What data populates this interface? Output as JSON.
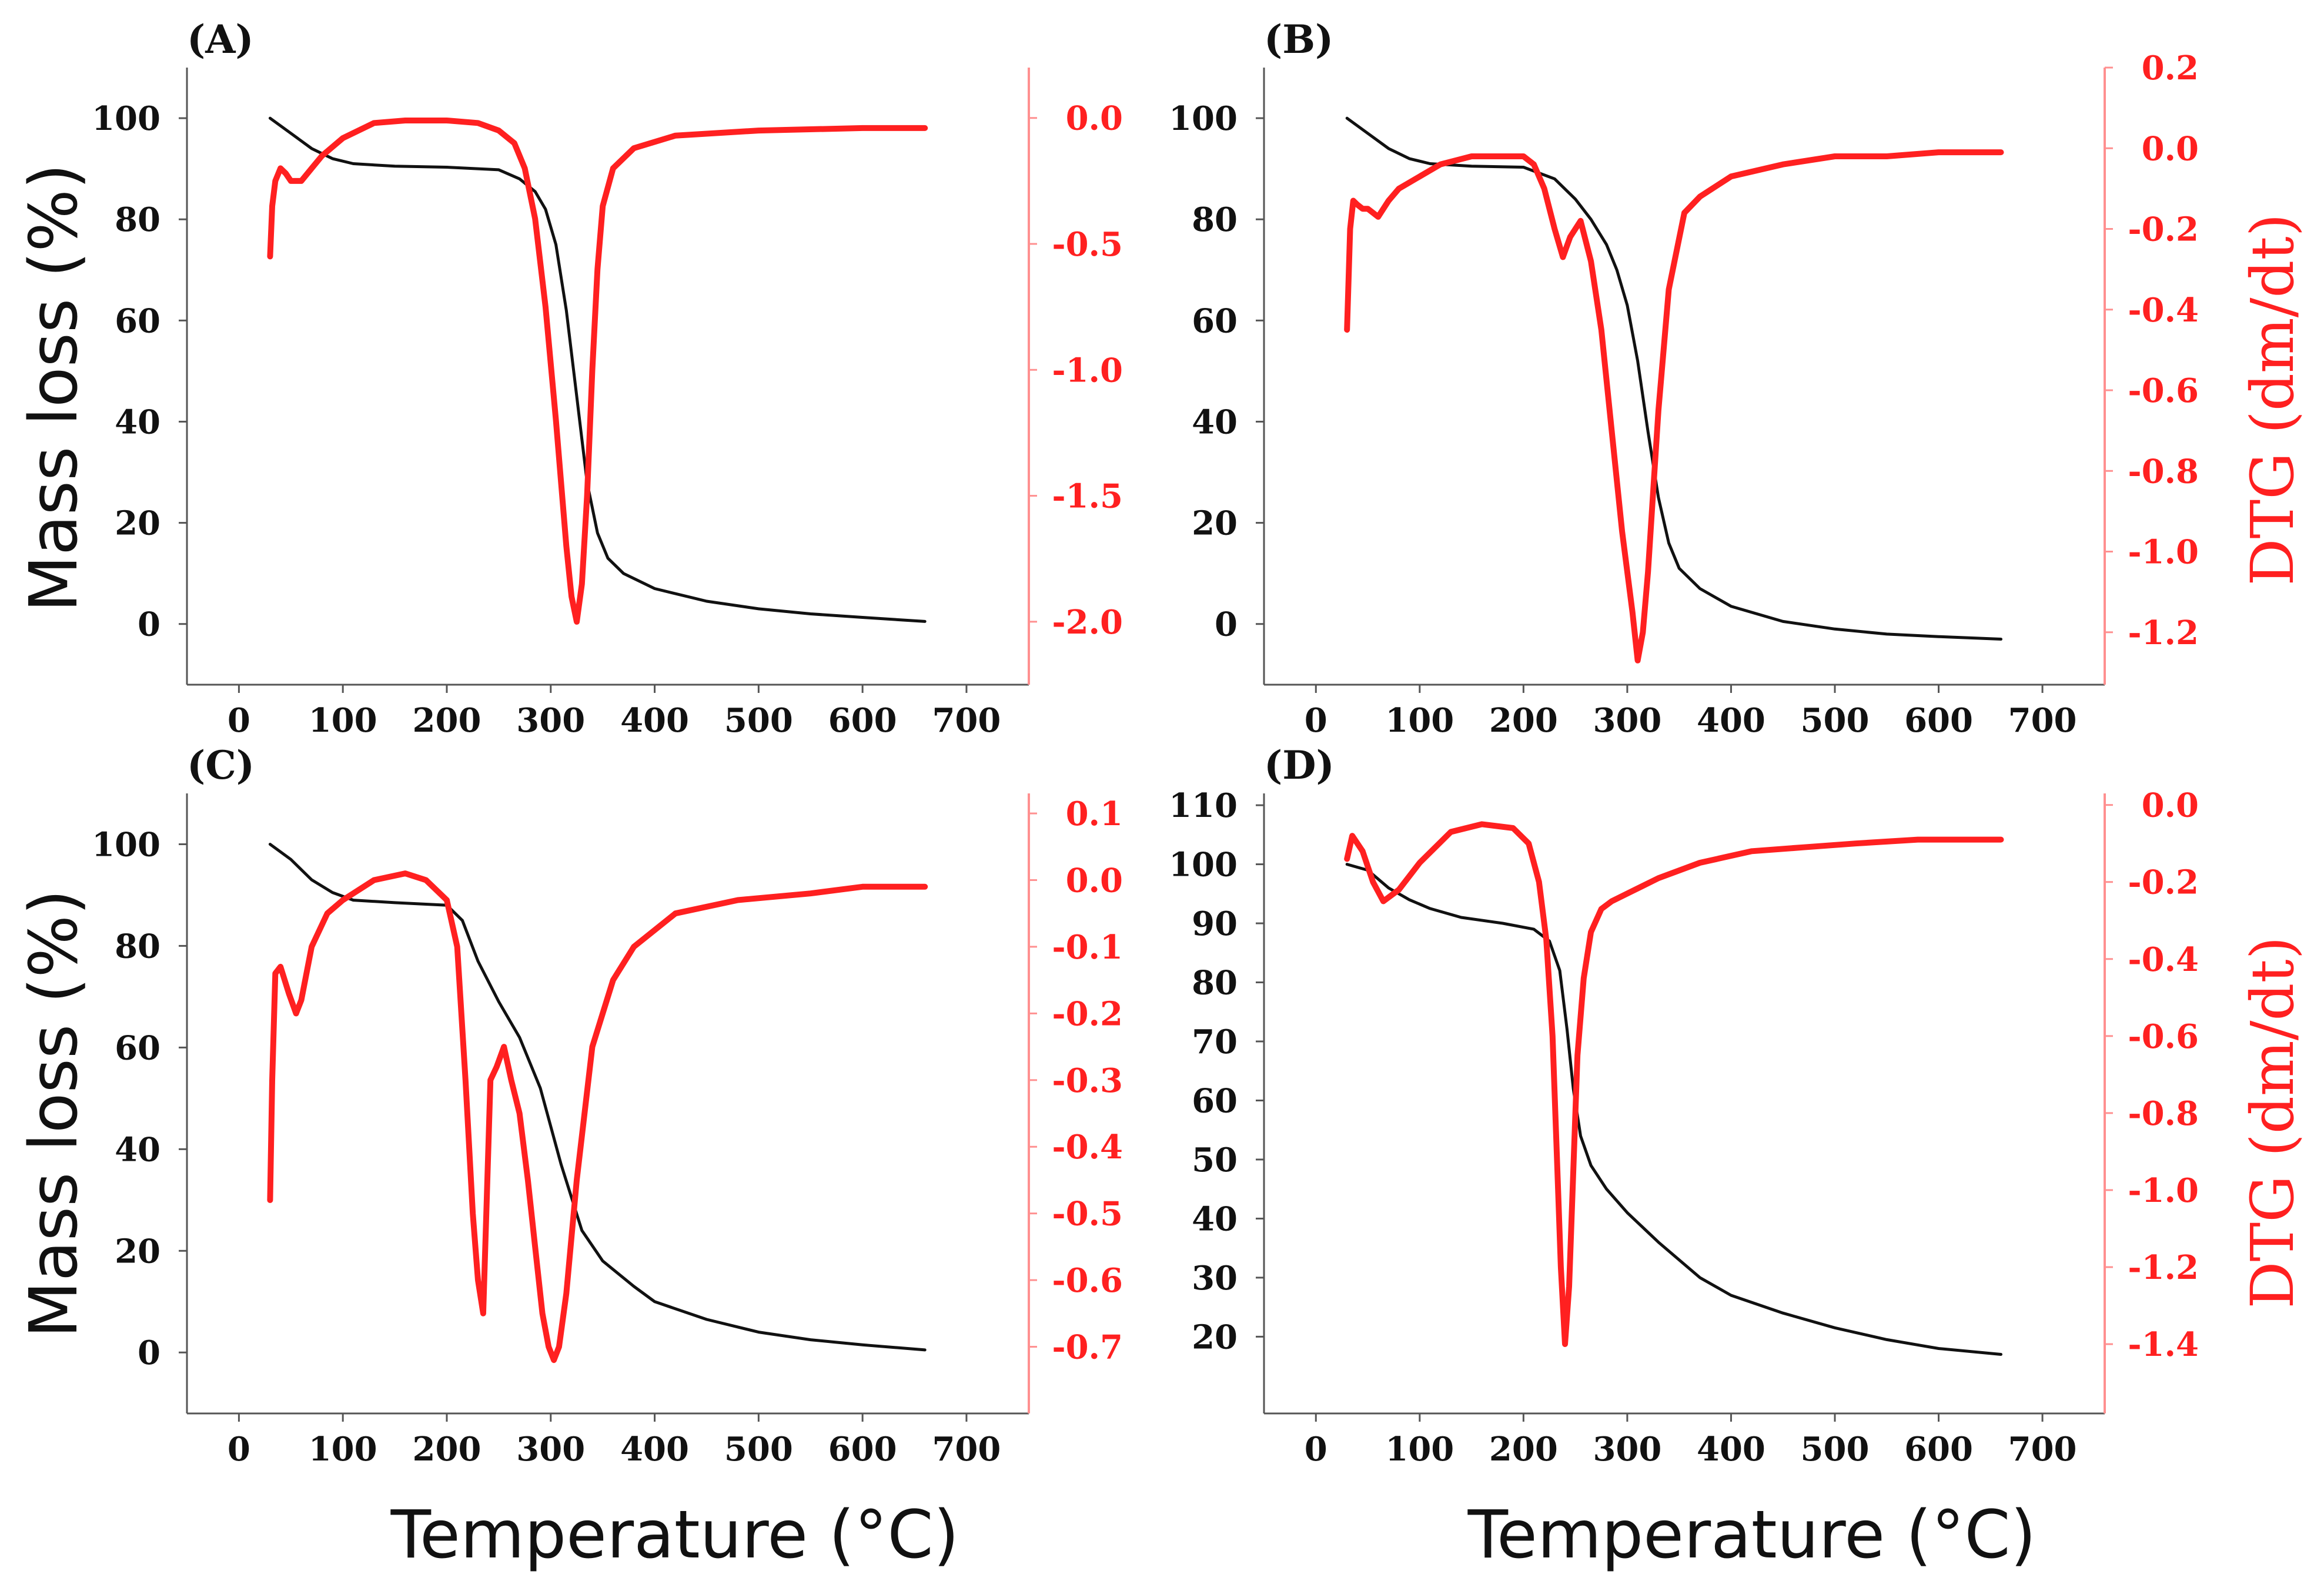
{
  "figure": {
    "x_axis_title": "Temperature (°C)",
    "left_axis_title": "Mass loss (%)",
    "right_axis_title": "DTG (dm/dt)",
    "colors": {
      "mass": "#111111",
      "dtg": "#ff2020",
      "axis": "#555555",
      "dtg_axis": "#ff9090"
    }
  },
  "chart_data": [
    {
      "type": "line",
      "label": "(A)",
      "x_ticks": [
        0,
        100,
        200,
        300,
        400,
        500,
        600,
        700
      ],
      "x_range": [
        -50,
        760
      ],
      "left_ticks": [
        0,
        20,
        40,
        60,
        80,
        100
      ],
      "left_range": [
        -12,
        110
      ],
      "right_ticks": [
        0.0,
        -0.5,
        -1.0,
        -1.5,
        -2.0
      ],
      "right_tick_labels": [
        "0.0",
        "-0.5",
        "-1.0",
        "-1.5",
        "-2.0"
      ],
      "right_range": [
        -2.25,
        0.2
      ],
      "series": [
        {
          "name": "Mass loss",
          "axis": "left",
          "x": [
            30,
            50,
            70,
            90,
            110,
            150,
            200,
            250,
            270,
            285,
            295,
            305,
            315,
            325,
            335,
            345,
            355,
            370,
            400,
            450,
            500,
            550,
            600,
            660
          ],
          "y": [
            100,
            97,
            94,
            92,
            91,
            90.5,
            90.3,
            89.8,
            88,
            85.5,
            82,
            75,
            62,
            45,
            28,
            18,
            13,
            10,
            7,
            4.5,
            3,
            2,
            1.3,
            0.5
          ]
        },
        {
          "name": "DTG",
          "axis": "right",
          "x": [
            30,
            32,
            35,
            40,
            45,
            50,
            60,
            70,
            80,
            100,
            130,
            160,
            200,
            230,
            250,
            265,
            275,
            285,
            295,
            305,
            315,
            320,
            325,
            330,
            335,
            340,
            345,
            350,
            360,
            380,
            420,
            500,
            600,
            660
          ],
          "y": [
            -0.55,
            -0.35,
            -0.25,
            -0.2,
            -0.22,
            -0.25,
            -0.25,
            -0.2,
            -0.15,
            -0.08,
            -0.02,
            -0.01,
            -0.01,
            -0.02,
            -0.05,
            -0.1,
            -0.2,
            -0.4,
            -0.75,
            -1.2,
            -1.7,
            -1.9,
            -2.0,
            -1.85,
            -1.5,
            -1.0,
            -0.6,
            -0.35,
            -0.2,
            -0.12,
            -0.07,
            -0.05,
            -0.04,
            -0.04
          ]
        }
      ]
    },
    {
      "type": "line",
      "label": "(B)",
      "x_ticks": [
        0,
        100,
        200,
        300,
        400,
        500,
        600,
        700
      ],
      "x_range": [
        -50,
        760
      ],
      "left_ticks": [
        0,
        20,
        40,
        60,
        80,
        100
      ],
      "left_range": [
        -12,
        110
      ],
      "right_ticks": [
        0.2,
        0.0,
        -0.2,
        -0.4,
        -0.6,
        -0.8,
        -1.0,
        -1.2
      ],
      "right_tick_labels": [
        "0.2",
        "0.0",
        "-0.2",
        "-0.4",
        "-0.6",
        "-0.8",
        "-1.0",
        "-1.2"
      ],
      "right_range": [
        -1.33,
        0.2
      ],
      "series": [
        {
          "name": "Mass loss",
          "axis": "left",
          "x": [
            30,
            50,
            70,
            90,
            110,
            150,
            200,
            230,
            250,
            265,
            280,
            290,
            300,
            310,
            320,
            330,
            340,
            350,
            370,
            400,
            450,
            500,
            550,
            600,
            660
          ],
          "y": [
            100,
            97,
            94,
            92,
            91,
            90.5,
            90.3,
            88,
            84,
            80,
            75,
            70,
            63,
            52,
            38,
            25,
            16,
            11,
            7,
            3.5,
            0.5,
            -1,
            -2,
            -2.5,
            -3
          ]
        },
        {
          "name": "DTG",
          "axis": "right",
          "x": [
            30,
            33,
            36,
            40,
            45,
            50,
            55,
            60,
            70,
            80,
            100,
            120,
            150,
            180,
            200,
            210,
            220,
            230,
            238,
            245,
            255,
            265,
            275,
            285,
            295,
            305,
            310,
            315,
            320,
            325,
            330,
            340,
            355,
            370,
            400,
            450,
            500,
            550,
            600,
            660
          ],
          "y": [
            -0.45,
            -0.2,
            -0.13,
            -0.14,
            -0.15,
            -0.15,
            -0.16,
            -0.17,
            -0.13,
            -0.1,
            -0.07,
            -0.04,
            -0.02,
            -0.02,
            -0.02,
            -0.04,
            -0.1,
            -0.2,
            -0.27,
            -0.22,
            -0.18,
            -0.28,
            -0.45,
            -0.7,
            -0.95,
            -1.15,
            -1.27,
            -1.2,
            -1.05,
            -0.85,
            -0.65,
            -0.35,
            -0.16,
            -0.12,
            -0.07,
            -0.04,
            -0.02,
            -0.02,
            -0.01,
            -0.01
          ]
        }
      ]
    },
    {
      "type": "line",
      "label": "(C)",
      "x_ticks": [
        0,
        100,
        200,
        300,
        400,
        500,
        600,
        700
      ],
      "x_range": [
        -50,
        760
      ],
      "left_ticks": [
        0,
        20,
        40,
        60,
        80,
        100
      ],
      "left_range": [
        -12,
        110
      ],
      "right_ticks": [
        0.1,
        0.0,
        -0.1,
        -0.2,
        -0.3,
        -0.4,
        -0.5,
        -0.6,
        -0.7
      ],
      "right_tick_labels": [
        "0.1",
        "0.0",
        "-0.1",
        "-0.2",
        "-0.3",
        "-0.4",
        "-0.5",
        "-0.6",
        "-0.7"
      ],
      "right_range": [
        -0.8,
        0.13
      ],
      "series": [
        {
          "name": "Mass loss",
          "axis": "left",
          "x": [
            30,
            50,
            70,
            90,
            110,
            150,
            200,
            215,
            230,
            250,
            270,
            290,
            310,
            330,
            350,
            380,
            400,
            450,
            500,
            550,
            600,
            660
          ],
          "y": [
            100,
            97,
            93,
            90.5,
            89,
            88.5,
            88,
            85,
            77,
            69,
            62,
            52,
            37,
            24,
            18,
            13,
            10,
            6.5,
            4,
            2.5,
            1.5,
            0.5
          ]
        },
        {
          "name": "DTG",
          "axis": "right",
          "x": [
            30,
            32,
            35,
            40,
            48,
            55,
            60,
            70,
            85,
            100,
            130,
            160,
            180,
            200,
            210,
            218,
            225,
            230,
            235,
            238,
            242,
            248,
            255,
            262,
            270,
            278,
            285,
            292,
            298,
            303,
            308,
            315,
            325,
            340,
            360,
            380,
            420,
            480,
            550,
            600,
            660
          ],
          "y": [
            -0.48,
            -0.3,
            -0.14,
            -0.13,
            -0.17,
            -0.2,
            -0.18,
            -0.1,
            -0.05,
            -0.03,
            0.0,
            0.01,
            0.0,
            -0.03,
            -0.1,
            -0.3,
            -0.5,
            -0.6,
            -0.65,
            -0.5,
            -0.3,
            -0.28,
            -0.25,
            -0.3,
            -0.35,
            -0.45,
            -0.55,
            -0.65,
            -0.7,
            -0.72,
            -0.7,
            -0.62,
            -0.45,
            -0.25,
            -0.15,
            -0.1,
            -0.05,
            -0.03,
            -0.02,
            -0.01,
            -0.01
          ]
        }
      ]
    },
    {
      "type": "line",
      "label": "(D)",
      "x_ticks": [
        0,
        100,
        200,
        300,
        400,
        500,
        600,
        700
      ],
      "x_range": [
        -50,
        760
      ],
      "left_ticks": [
        20,
        30,
        40,
        50,
        60,
        70,
        80,
        90,
        100,
        110
      ],
      "left_range": [
        7,
        112
      ],
      "right_ticks": [
        0.0,
        -0.2,
        -0.4,
        -0.6,
        -0.8,
        -1.0,
        -1.2,
        -1.4
      ],
      "right_tick_labels": [
        "0.0",
        "-0.2",
        "-0.4",
        "-0.6",
        "-0.8",
        "-1.0",
        "-1.2",
        "-1.4"
      ],
      "right_range": [
        -1.58,
        0.03
      ],
      "series": [
        {
          "name": "Mass loss",
          "axis": "left",
          "x": [
            30,
            50,
            70,
            90,
            110,
            140,
            180,
            210,
            225,
            235,
            242,
            248,
            255,
            265,
            280,
            300,
            330,
            370,
            400,
            450,
            500,
            550,
            600,
            660
          ],
          "y": [
            100,
            99,
            96,
            94,
            92.5,
            91,
            90,
            89,
            87,
            82,
            72,
            62,
            54,
            49,
            45,
            41,
            36,
            30,
            27,
            24,
            21.5,
            19.5,
            18,
            17
          ]
        },
        {
          "name": "DTG",
          "axis": "right",
          "x": [
            30,
            35,
            45,
            55,
            65,
            80,
            100,
            130,
            160,
            190,
            205,
            215,
            222,
            228,
            232,
            236,
            240,
            244,
            248,
            252,
            258,
            265,
            275,
            285,
            300,
            330,
            370,
            420,
            470,
            520,
            580,
            660
          ],
          "y": [
            -0.14,
            -0.08,
            -0.12,
            -0.2,
            -0.25,
            -0.22,
            -0.15,
            -0.07,
            -0.05,
            -0.06,
            -0.1,
            -0.2,
            -0.35,
            -0.6,
            -0.9,
            -1.2,
            -1.4,
            -1.25,
            -0.95,
            -0.65,
            -0.45,
            -0.33,
            -0.27,
            -0.25,
            -0.23,
            -0.19,
            -0.15,
            -0.12,
            -0.11,
            -0.1,
            -0.09,
            -0.09
          ]
        }
      ]
    }
  ]
}
